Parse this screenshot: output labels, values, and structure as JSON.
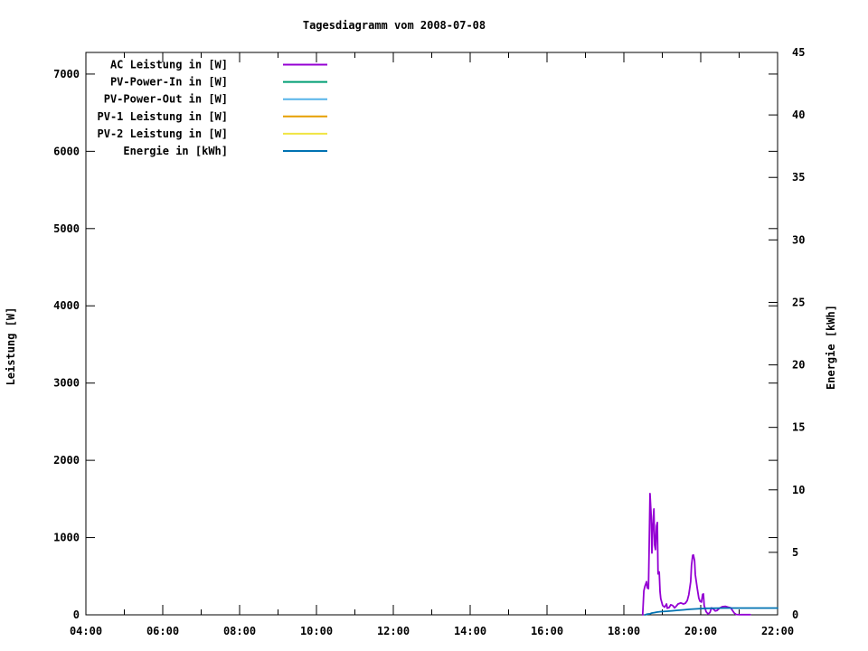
{
  "page": {
    "background": "#ffffff"
  },
  "chart_data": {
    "type": "line",
    "title": "Tagesdiagramm vom 2008-07-08",
    "grid": false,
    "legend": {
      "position": "top-left-inside"
    },
    "x_axis": {
      "range": [
        4,
        22
      ],
      "minor_step": 1,
      "tick_labels": [
        {
          "t": 4,
          "label": "04:00"
        },
        {
          "t": 6,
          "label": "06:00"
        },
        {
          "t": 8,
          "label": "08:00"
        },
        {
          "t": 10,
          "label": "10:00"
        },
        {
          "t": 12,
          "label": "12:00"
        },
        {
          "t": 14,
          "label": "14:00"
        },
        {
          "t": 16,
          "label": "16:00"
        },
        {
          "t": 18,
          "label": "18:00"
        },
        {
          "t": 20,
          "label": "20:00"
        },
        {
          "t": 22,
          "label": "22:00"
        }
      ]
    },
    "y_left": {
      "label": "Leistung [W]",
      "range": [
        0,
        7280
      ],
      "ticks": [
        {
          "v": 0,
          "label": "0"
        },
        {
          "v": 1000,
          "label": "1000"
        },
        {
          "v": 2000,
          "label": "2000"
        },
        {
          "v": 3000,
          "label": "3000"
        },
        {
          "v": 4000,
          "label": "4000"
        },
        {
          "v": 5000,
          "label": "5000"
        },
        {
          "v": 6000,
          "label": "6000"
        },
        {
          "v": 7000,
          "label": "7000"
        }
      ]
    },
    "y_right": {
      "label": "Energie [kWh]",
      "range": [
        0,
        45
      ],
      "ticks": [
        {
          "v": 0,
          "label": "0"
        },
        {
          "v": 5,
          "label": "5"
        },
        {
          "v": 10,
          "label": "10"
        },
        {
          "v": 15,
          "label": "15"
        },
        {
          "v": 20,
          "label": "20"
        },
        {
          "v": 25,
          "label": "25"
        },
        {
          "v": 30,
          "label": "30"
        },
        {
          "v": 35,
          "label": "35"
        },
        {
          "v": 40,
          "label": "40"
        },
        {
          "v": 45,
          "label": "45"
        }
      ]
    },
    "series": [
      {
        "name": "AC Leistung in [W]",
        "color": "#9400d3",
        "axis": "left",
        "points": [
          [
            18.49,
            0
          ],
          [
            18.52,
            310
          ],
          [
            18.55,
            375
          ],
          [
            18.59,
            430
          ],
          [
            18.61,
            350
          ],
          [
            18.64,
            340
          ],
          [
            18.66,
            900
          ],
          [
            18.68,
            1570
          ],
          [
            18.71,
            1280
          ],
          [
            18.73,
            800
          ],
          [
            18.75,
            1120
          ],
          [
            18.78,
            1370
          ],
          [
            18.8,
            905
          ],
          [
            18.82,
            845
          ],
          [
            18.85,
            1150
          ],
          [
            18.87,
            1195
          ],
          [
            18.89,
            530
          ],
          [
            18.92,
            555
          ],
          [
            18.94,
            300
          ],
          [
            18.96,
            210
          ],
          [
            19.01,
            120
          ],
          [
            19.06,
            100
          ],
          [
            19.11,
            140
          ],
          [
            19.13,
            85
          ],
          [
            19.18,
            95
          ],
          [
            19.22,
            130
          ],
          [
            19.27,
            120
          ],
          [
            19.32,
            90
          ],
          [
            19.36,
            110
          ],
          [
            19.41,
            140
          ],
          [
            19.48,
            155
          ],
          [
            19.55,
            140
          ],
          [
            19.6,
            150
          ],
          [
            19.65,
            185
          ],
          [
            19.69,
            260
          ],
          [
            19.74,
            430
          ],
          [
            19.76,
            640
          ],
          [
            19.79,
            770
          ],
          [
            19.81,
            775
          ],
          [
            19.84,
            700
          ],
          [
            19.86,
            520
          ],
          [
            19.91,
            340
          ],
          [
            19.95,
            215
          ],
          [
            19.98,
            175
          ],
          [
            20.02,
            165
          ],
          [
            20.05,
            265
          ],
          [
            20.07,
            270
          ],
          [
            20.09,
            120
          ],
          [
            20.14,
            40
          ],
          [
            20.19,
            10
          ],
          [
            20.24,
            30
          ],
          [
            20.28,
            90
          ],
          [
            20.33,
            75
          ],
          [
            20.38,
            50
          ],
          [
            20.42,
            55
          ],
          [
            20.49,
            85
          ],
          [
            20.56,
            105
          ],
          [
            20.64,
            110
          ],
          [
            20.71,
            100
          ],
          [
            20.78,
            90
          ],
          [
            20.82,
            60
          ],
          [
            20.87,
            25
          ],
          [
            20.92,
            5
          ],
          [
            21.01,
            2
          ],
          [
            21.29,
            2
          ]
        ]
      },
      {
        "name": "PV-Power-In in [W]",
        "color": "#009e73",
        "axis": "left",
        "points": []
      },
      {
        "name": "PV-Power-Out in [W]",
        "color": "#56b4e9",
        "axis": "left",
        "points": []
      },
      {
        "name": "PV-1 Leistung in [W]",
        "color": "#e69f00",
        "axis": "left",
        "points": []
      },
      {
        "name": "PV-2 Leistung in [W]",
        "color": "#f0e442",
        "axis": "left",
        "points": []
      },
      {
        "name": "Energie in [kWh]",
        "color": "#0072b2",
        "axis": "right",
        "points": [
          [
            18.55,
            0.0
          ],
          [
            18.6,
            0.05
          ],
          [
            18.68,
            0.08
          ],
          [
            18.72,
            0.14
          ],
          [
            18.8,
            0.18
          ],
          [
            18.86,
            0.22
          ],
          [
            18.95,
            0.25
          ],
          [
            19.1,
            0.28
          ],
          [
            19.25,
            0.32
          ],
          [
            19.4,
            0.36
          ],
          [
            19.55,
            0.4
          ],
          [
            19.7,
            0.44
          ],
          [
            19.85,
            0.47
          ],
          [
            20.0,
            0.5
          ],
          [
            20.15,
            0.52
          ],
          [
            20.35,
            0.53
          ],
          [
            20.6,
            0.54
          ],
          [
            22.0,
            0.54
          ]
        ]
      }
    ]
  }
}
